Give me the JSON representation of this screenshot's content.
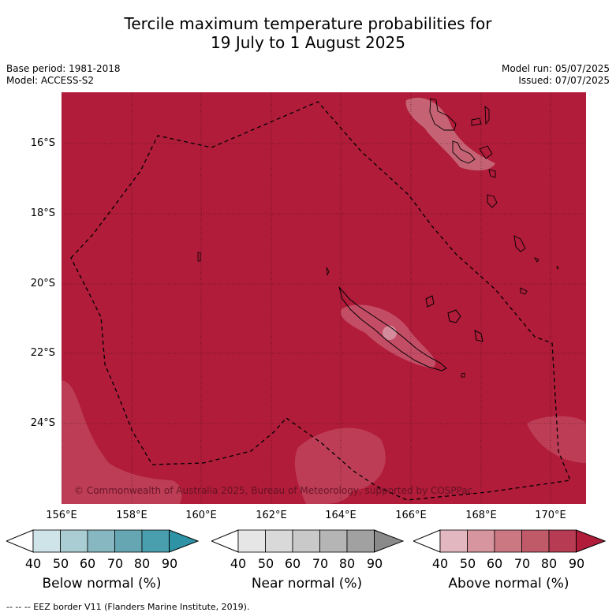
{
  "title": {
    "line1": "Tercile maximum temperature probabilities for",
    "line2": "19 July to 1 August 2025"
  },
  "meta": {
    "base_period": "Base period: 1981-2018",
    "model": "Model: ACCESS-S2",
    "model_run": "Model run: 05/07/2025",
    "issued": "Issued: 07/07/2025"
  },
  "map": {
    "lat_labels": [
      "16°S",
      "18°S",
      "20°S",
      "22°S",
      "24°S"
    ],
    "lon_labels": [
      "156°E",
      "158°E",
      "160°E",
      "162°E",
      "164°E",
      "166°E",
      "168°E",
      "170°E"
    ],
    "copyright": "© Commonwealth of Australia 2025, Bureau of Meteorology, supported by COSPPac",
    "colors": {
      "dominant": "#b01c3a",
      "lighter": "#bd3d57",
      "land_highlight": "#e0b8c2"
    }
  },
  "colorbars": [
    {
      "label": "Below normal (%)",
      "ticks": [
        "40",
        "50",
        "60",
        "70",
        "80",
        "90"
      ],
      "colors": [
        "#cfe4e8",
        "#a9cdd2",
        "#87b8c2",
        "#66a6b2",
        "#4a9fae",
        "#2f93a6"
      ]
    },
    {
      "label": "Near normal (%)",
      "ticks": [
        "40",
        "50",
        "60",
        "70",
        "80",
        "90"
      ],
      "colors": [
        "#e6e6e6",
        "#d9d9d9",
        "#c9c9c9",
        "#b5b5b5",
        "#a1a1a1",
        "#8a8a8a"
      ]
    },
    {
      "label": "Above normal (%)",
      "ticks": [
        "40",
        "50",
        "60",
        "70",
        "80",
        "90"
      ],
      "colors": [
        "#e2b7c0",
        "#d7959f",
        "#cb7882",
        "#c05a69",
        "#b73b52",
        "#b01c3a"
      ]
    }
  ],
  "footer": "--  --  -- EEZ border V11 (Flanders Marine Institute, 2019)."
}
